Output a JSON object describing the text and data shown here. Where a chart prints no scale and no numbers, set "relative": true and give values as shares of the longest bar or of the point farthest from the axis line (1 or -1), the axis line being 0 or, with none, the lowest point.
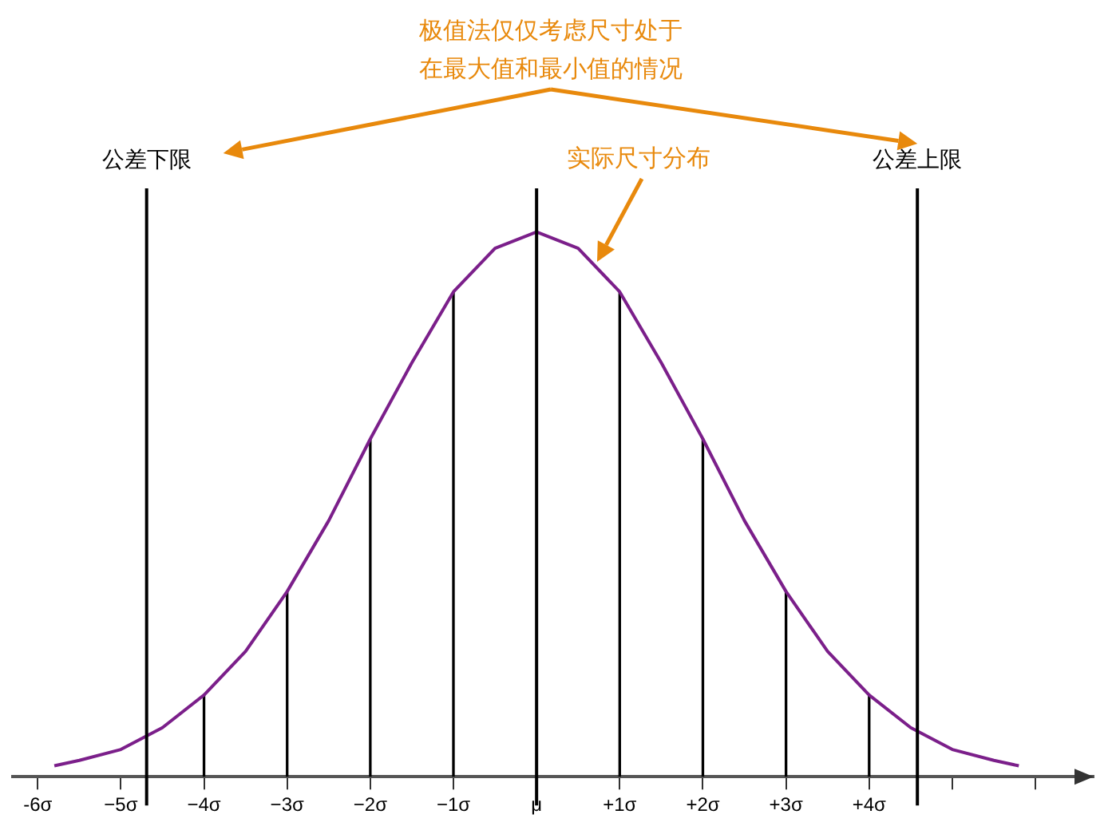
{
  "chart_data": {
    "type": "line",
    "relative": true,
    "xlim": [
      -6.3,
      6.7
    ],
    "xticks": [
      {
        "value": -6,
        "label": "-6σ"
      },
      {
        "value": -5,
        "label": "−5σ"
      },
      {
        "value": -4,
        "label": "−4σ"
      },
      {
        "value": -3,
        "label": "−3σ"
      },
      {
        "value": -2,
        "label": "−2σ"
      },
      {
        "value": -1,
        "label": "−1σ"
      },
      {
        "value": 0,
        "label": "μ"
      },
      {
        "value": 1,
        "label": "+1σ"
      },
      {
        "value": 2,
        "label": "+2σ"
      },
      {
        "value": 3,
        "label": "+3σ"
      },
      {
        "value": 4,
        "label": "+4σ"
      },
      {
        "value": 5,
        "label": null
      },
      {
        "value": 6,
        "label": null
      }
    ],
    "tick_labels": "x",
    "grid": false,
    "legend": false,
    "marker": "none",
    "series": [
      {
        "color": "#7b1f8a",
        "line_style": "solid",
        "x": [
          -5.8,
          -5.5,
          -5,
          -4.5,
          -4,
          -3.5,
          -3,
          -2.5,
          -2,
          -1.5,
          -1,
          -0.5,
          0,
          0.5,
          1,
          1.5,
          2,
          2.5,
          3,
          3.5,
          4,
          4.5,
          5,
          5.5,
          5.8
        ],
        "values": [
          0.02,
          0.03,
          0.05,
          0.09,
          0.15,
          0.23,
          0.34,
          0.47,
          0.62,
          0.76,
          0.89,
          0.97,
          1,
          0.97,
          0.89,
          0.76,
          0.62,
          0.47,
          0.34,
          0.23,
          0.15,
          0.09,
          0.05,
          0.03,
          0.02
        ]
      },
      {
        "type": "bar",
        "color": "#000000",
        "x": [
          -4,
          -3,
          -2,
          -1,
          1,
          2,
          3,
          4
        ],
        "values": [
          0.15,
          0.34,
          0.62,
          0.89,
          0.89,
          0.62,
          0.34,
          0.15
        ]
      }
    ],
    "ref_lines": [
      {
        "axis": "x",
        "value": -4.69,
        "label": "公差下限",
        "color": "#000000"
      },
      {
        "axis": "x",
        "value": 0,
        "color": "#000000"
      },
      {
        "axis": "x",
        "value": 4.58,
        "label": "公差上限",
        "color": "#000000"
      }
    ],
    "annotations": [
      "极值法仅仅考虑尺寸处于在最大值和最小值的情况",
      "实际尺寸分布"
    ]
  }
}
